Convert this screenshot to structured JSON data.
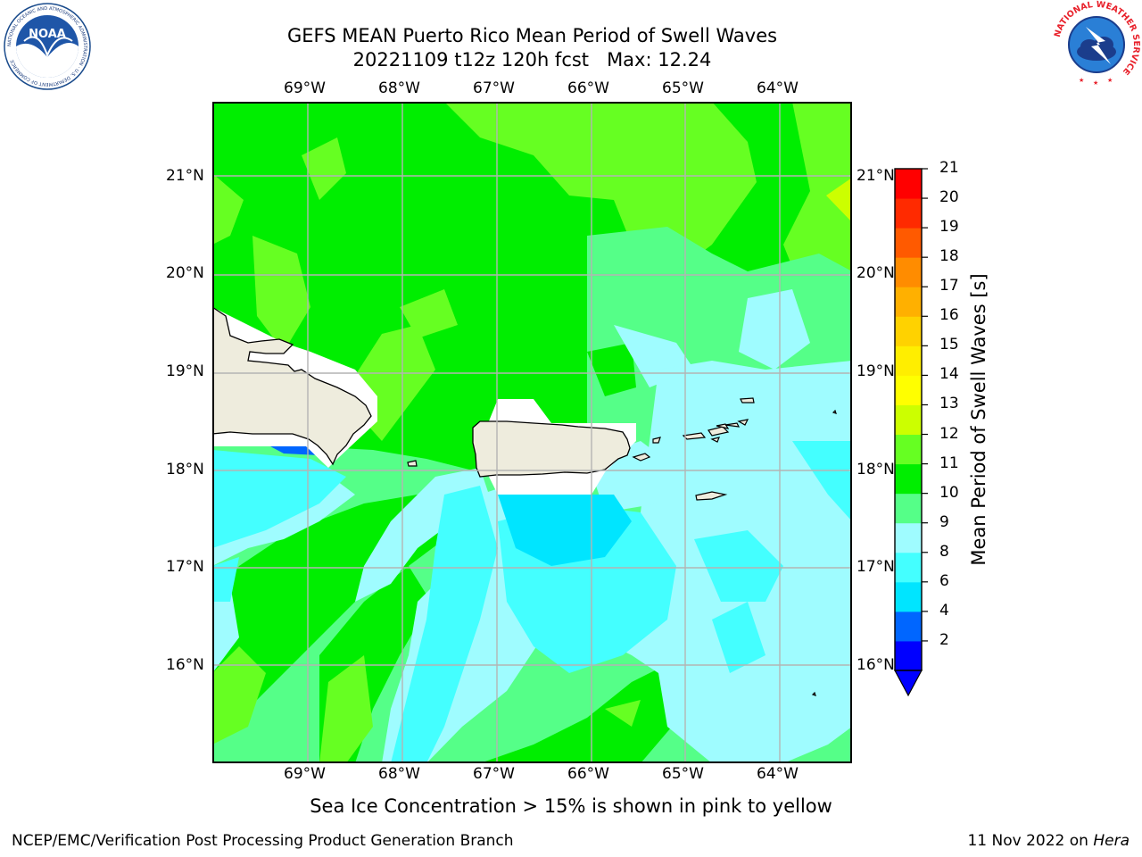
{
  "title": {
    "line1": "GEFS MEAN Puerto Rico Mean Period of Swell Waves",
    "line2": "20221109 t12z 120h fcst   Max: 12.24"
  },
  "map": {
    "lon_labels": [
      "69°W",
      "68°W",
      "67°W",
      "66°W",
      "65°W",
      "64°W"
    ],
    "lat_labels": [
      "21°N",
      "20°N",
      "19°N",
      "18°N",
      "17°N",
      "16°N"
    ],
    "grid": true,
    "land_color": "#eeecdd",
    "masked_color": "#ffffff"
  },
  "colorbar": {
    "label": "Mean Period of Swell Waves [s]",
    "ticks": [
      "21",
      "20",
      "19",
      "18",
      "17",
      "16",
      "15",
      "14",
      "13",
      "12",
      "11",
      "10",
      "9",
      "8",
      "6",
      "4",
      "2"
    ],
    "colors": [
      "#0000ff",
      "#0066ff",
      "#00e5ff",
      "#44ffff",
      "#9ffcff",
      "#55ff88",
      "#00ee00",
      "#66ff22",
      "#ccff00",
      "#ffff00",
      "#ffee00",
      "#ffd200",
      "#ffb000",
      "#ff8c00",
      "#ff5a00",
      "#ff2a00",
      "#ff0000"
    ]
  },
  "logos": {
    "noaa_text": "NOAA",
    "noaa_ring": "NATIONAL OCEANIC AND ATMOSPHERIC ADMINISTRATION · U.S. DEPARTMENT OF COMMERCE",
    "nws_ring": "NATIONAL WEATHER SERVICE"
  },
  "note": "Sea Ice Concentration > 15% is shown in pink to yellow",
  "footer": {
    "left": "NCEP/EMC/Verification Post Processing Product Generation Branch",
    "right_prefix": "11 Nov 2022 on ",
    "right_host": "Hera"
  }
}
